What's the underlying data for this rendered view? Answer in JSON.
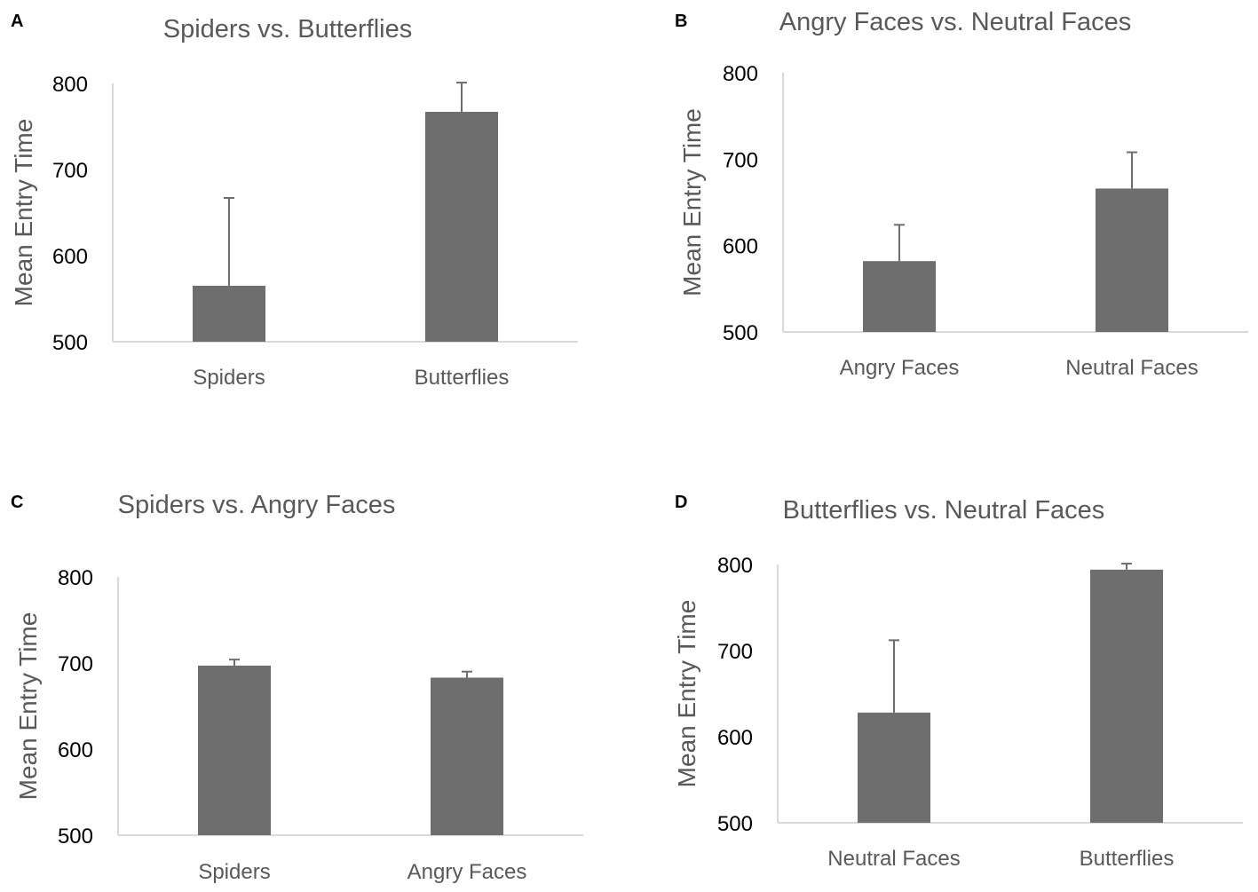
{
  "colors": {
    "bar": "#6e6e6e",
    "error_bar": "#6e6e6e",
    "axis": "#d9d9d9",
    "title_text": "#595959",
    "tick_text": "#000000"
  },
  "chart_data": [
    {
      "panel": "A",
      "type": "bar",
      "title": "Spiders vs. Butterflies",
      "xlabel": "",
      "ylabel": "Mean Entry Time",
      "ylim": [
        500,
        800
      ],
      "yticks": [
        "500",
        "600",
        "700",
        "800"
      ],
      "categories": [
        "Spiders",
        "Butterflies"
      ],
      "values": [
        565,
        767
      ],
      "errors": [
        102,
        34
      ]
    },
    {
      "panel": "B",
      "type": "bar",
      "title": "Angry Faces vs. Neutral Faces",
      "xlabel": "",
      "ylabel": "Mean Entry Time",
      "ylim": [
        500,
        800
      ],
      "yticks": [
        "500",
        "600",
        "700",
        "800"
      ],
      "categories": [
        "Angry Faces",
        "Neutral Faces"
      ],
      "values": [
        582,
        666
      ],
      "errors": [
        42,
        42
      ]
    },
    {
      "panel": "C",
      "type": "bar",
      "title": "Spiders vs. Angry Faces",
      "xlabel": "",
      "ylabel": "Mean Entry Time",
      "ylim": [
        500,
        800
      ],
      "yticks": [
        "500",
        "600",
        "700",
        "800"
      ],
      "categories": [
        "Spiders",
        "Angry Faces"
      ],
      "values": [
        697,
        683
      ],
      "errors": [
        7,
        7
      ]
    },
    {
      "panel": "D",
      "type": "bar",
      "title": "Butterflies vs. Neutral Faces",
      "xlabel": "",
      "ylabel": "Mean Entry Time",
      "ylim": [
        500,
        800
      ],
      "yticks": [
        "500",
        "600",
        "700",
        "800"
      ],
      "categories": [
        "Neutral Faces",
        "Butterflies"
      ],
      "values": [
        628,
        794
      ],
      "errors": [
        84,
        7
      ]
    }
  ]
}
